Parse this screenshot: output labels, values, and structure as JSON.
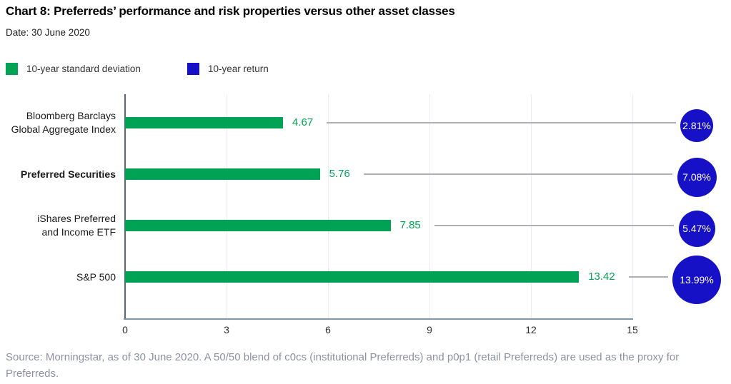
{
  "title": "Chart 8: Preferreds’ performance and risk properties versus other asset classes",
  "date_label": "Date: 30 June 2020",
  "legend": [
    {
      "label": "10-year standard deviation",
      "color": "#00A353"
    },
    {
      "label": "10-year return",
      "color": "#1611C7"
    }
  ],
  "chart_data": {
    "type": "bar",
    "orientation": "horizontal",
    "title": "Chart 8: Preferreds’ performance and risk properties versus other asset classes",
    "categories": [
      "Bloomberg Barclays Global Aggregate Index",
      "Preferred Securities",
      "iShares Preferred and Income ETF",
      "S&P 500"
    ],
    "category_lines": [
      [
        "Bloomberg Barclays",
        "Global Aggregate Index"
      ],
      [
        "Preferred Securities"
      ],
      [
        "iShares Preferred",
        "and Income ETF"
      ],
      [
        "S&P 500"
      ]
    ],
    "bold_category_index": 1,
    "series": [
      {
        "name": "10-year standard deviation",
        "display": "bar",
        "color": "#00A353",
        "values": [
          4.67,
          5.76,
          7.85,
          13.42
        ],
        "value_labels": [
          "4.67",
          "5.76",
          "7.85",
          "13.42"
        ]
      },
      {
        "name": "10-year return",
        "display": "bubble",
        "color": "#1611C7",
        "values": [
          2.81,
          7.08,
          5.47,
          13.99
        ],
        "value_labels": [
          "2.81%",
          "7.08%",
          "5.47%",
          "13.99%"
        ]
      }
    ],
    "xlabel": "",
    "ylabel": "",
    "xlim": [
      0,
      15
    ],
    "xticks": [
      "0",
      "3",
      "6",
      "9",
      "12",
      "15"
    ],
    "grid": "vertical",
    "legend_position": "top"
  },
  "source": "Source: Morningstar, as of 30 June 2020. A 50/50 blend of c0cs (institutional Preferreds) and p0p1 (retail Preferreds) are used as the proxy for Preferreds.",
  "colors": {
    "bar_green": "#00A353",
    "bubble_blue": "#1611C7",
    "grid": "#EDEDEE",
    "axis_x": "#8096AB",
    "axis_y": "#5C6570",
    "leader": "#ABB0BA",
    "source_text": "#8C92A2"
  }
}
